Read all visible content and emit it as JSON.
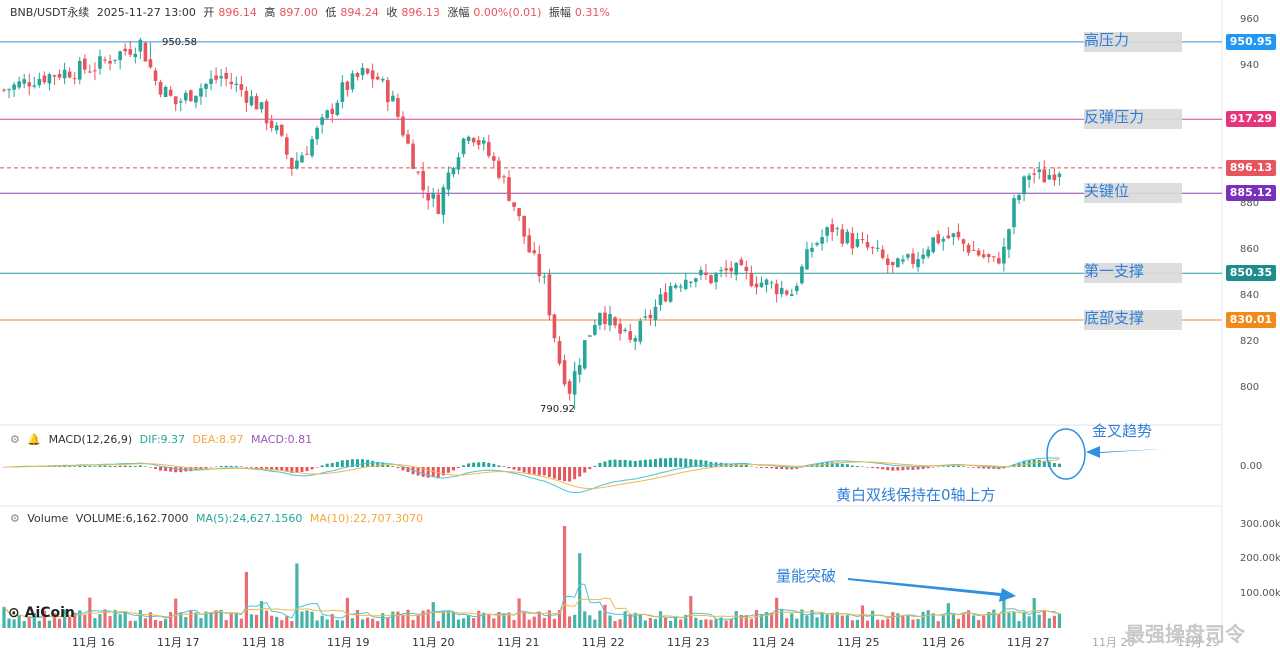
{
  "header": {
    "symbol": "BNB/USDT永续",
    "datetime": "2025-11-27 13:00",
    "open_label": "开",
    "open": "896.14",
    "high_label": "高",
    "high": "897.00",
    "low_label": "低",
    "low": "894.24",
    "close_label": "收",
    "close": "896.13",
    "change_label": "涨幅",
    "change": "0.00%(0.01)",
    "amp_label": "振幅",
    "amp": "0.31%"
  },
  "macd": {
    "title": "MACD(12,26,9)",
    "dif": "DIF:9.37",
    "dea": "DEA:8.97",
    "macd": "MACD:0.81",
    "zero_label": "0.00"
  },
  "volume": {
    "title": "Volume",
    "value": "VOLUME:6,162.7000",
    "ma5": "MA(5):24,627.1560",
    "ma10": "MA(10):22,707.3070",
    "ticks": [
      "300.00k",
      "200.00k",
      "100.00k"
    ]
  },
  "levels": [
    {
      "name": "高压力",
      "price": "950.95",
      "value": 950.95,
      "color": "#3b8fd6",
      "badge": "#2196f3"
    },
    {
      "name": "反弹压力",
      "price": "917.29",
      "value": 917.29,
      "color": "#d44a9a",
      "badge": "#e6357a"
    },
    {
      "name": "关键位",
      "price": "885.12",
      "value": 885.12,
      "color": "#8e44ad",
      "badge": "#7b2fbf"
    },
    {
      "name": "第一支撑",
      "price": "850.35",
      "value": 850.35,
      "color": "#2a9d9d",
      "badge": "#1e8c8c"
    },
    {
      "name": "底部支撑",
      "price": "830.01",
      "value": 830.01,
      "color": "#f08a24",
      "badge": "#f28a1a"
    }
  ],
  "current_price": {
    "price": "896.13",
    "value": 896.13,
    "badge": "#e8545c"
  },
  "annotations": {
    "golden_cross": "金叉趋势",
    "above_zero": "黄白双线保持在0轴上方",
    "volume_breakout": "量能突破",
    "high_mark": "950.58",
    "low_mark": "790.92"
  },
  "logo": "AiCoin",
  "watermark": "最强操盘司令",
  "chart_data": {
    "type": "candlestick",
    "y_ticks": [
      960,
      940,
      920,
      900,
      880,
      860,
      840,
      820,
      800
    ],
    "ylim": [
      780,
      966
    ],
    "x_labels": [
      "11月 16",
      "11月 17",
      "11月 18",
      "11月 19",
      "11月 20",
      "11月 21",
      "11月 22",
      "11月 23",
      "11月 24",
      "11月 25",
      "11月 26",
      "11月 27",
      "11月 28",
      "11月 29"
    ],
    "close_path": [
      [
        0,
        930
      ],
      [
        6,
        935
      ],
      [
        12,
        938
      ],
      [
        18,
        940
      ],
      [
        22,
        945
      ],
      [
        27,
        950.58
      ],
      [
        30,
        934
      ],
      [
        34,
        924
      ],
      [
        38,
        930
      ],
      [
        43,
        936
      ],
      [
        47,
        930
      ],
      [
        50,
        924
      ],
      [
        54,
        912
      ],
      [
        57,
        897
      ],
      [
        60,
        905
      ],
      [
        63,
        915
      ],
      [
        67,
        930
      ],
      [
        71,
        937
      ],
      [
        74,
        935
      ],
      [
        77,
        925
      ],
      [
        80,
        906
      ],
      [
        83,
        887
      ],
      [
        86,
        880
      ],
      [
        89,
        900
      ],
      [
        92,
        913
      ],
      [
        95,
        905
      ],
      [
        98,
        895
      ],
      [
        101,
        880
      ],
      [
        104,
        860
      ],
      [
        107,
        846
      ],
      [
        110,
        812
      ],
      [
        112,
        800
      ],
      [
        115,
        820
      ],
      [
        118,
        835
      ],
      [
        121,
        826
      ],
      [
        124,
        820
      ],
      [
        128,
        832
      ],
      [
        132,
        845
      ],
      [
        136,
        850
      ],
      [
        140,
        848
      ],
      [
        144,
        852
      ],
      [
        148,
        848
      ],
      [
        152,
        845
      ],
      [
        156,
        842
      ],
      [
        160,
        862
      ],
      [
        164,
        870
      ],
      [
        168,
        864
      ],
      [
        172,
        860
      ],
      [
        176,
        852
      ],
      [
        180,
        856
      ],
      [
        184,
        865
      ],
      [
        188,
        866
      ],
      [
        192,
        860
      ],
      [
        196,
        855
      ],
      [
        198,
        860
      ],
      [
        200,
        880
      ],
      [
        203,
        894
      ],
      [
        206,
        892
      ],
      [
        209,
        896.13
      ]
    ],
    "series_note": "hourly candles, MACD and volume approximated"
  }
}
